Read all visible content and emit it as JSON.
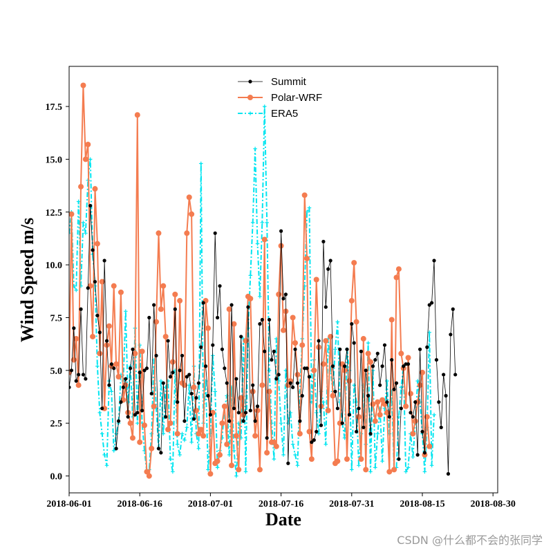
{
  "chart_data": {
    "type": "line",
    "xlabel": "Date",
    "ylabel": "Wind Speed m/s",
    "xlim": [
      "2018-06-01",
      "2018-08-31"
    ],
    "ylim": [
      -0.8,
      19.4
    ],
    "x_ticks": [
      {
        "date": "2018-06-01",
        "label": "2018-06-01"
      },
      {
        "date": "2018-06-16",
        "label": "2018-06-16"
      },
      {
        "date": "2018-07-01",
        "label": "2018-07-01"
      },
      {
        "date": "2018-07-16",
        "label": "2018-07-16"
      },
      {
        "date": "2018-07-31",
        "label": "2018-07-31"
      },
      {
        "date": "2018-08-15",
        "label": "2018-08-15"
      },
      {
        "date": "2018-08-30",
        "label": "2018-08-30"
      }
    ],
    "y_ticks": [
      {
        "value": 0,
        "label": "0.0"
      },
      {
        "value": 2.5,
        "label": "2.5"
      },
      {
        "value": 5,
        "label": "5.0"
      },
      {
        "value": 7.5,
        "label": "7.5"
      },
      {
        "value": 10,
        "label": "10.0"
      },
      {
        "value": 12.5,
        "label": "12.5"
      },
      {
        "value": 15,
        "label": "15.0"
      },
      {
        "value": 17.5,
        "label": "17.5"
      }
    ],
    "grid": false,
    "legend_position": "top-center",
    "sampling": "two values per day (12-hourly), starting 2018-06-01 00:00",
    "series": [
      {
        "name": "Summit",
        "color": "#000000",
        "style": "solid-thin-dot",
        "values": [
          4.2,
          5.0,
          7.0,
          4.5,
          4.8,
          7.9,
          4.8,
          4.6,
          8.9,
          12.8,
          10.7,
          9.2,
          7.6,
          6.8,
          3.2,
          10.2,
          6.4,
          4.3,
          5.3,
          5.1,
          1.3,
          2.6,
          3.5,
          4.2,
          4.6,
          2.8,
          5.1,
          6.0,
          2.9,
          3.0,
          4.9,
          3.1,
          5.0,
          5.1,
          7.5,
          3.9,
          8.1,
          5.7,
          1.3,
          1.1,
          4.4,
          2.8,
          6.4,
          4.7,
          4.9,
          7.9,
          3.5,
          5.0,
          5.7,
          2.6,
          4.7,
          4.8,
          3.9,
          2.7,
          3.7,
          4.4,
          6.1,
          8.2,
          5.2,
          3.8,
          2.9,
          6.2,
          11.5,
          7.5,
          9.0,
          6.0,
          5.1,
          4.4,
          2.6,
          8.1,
          3.2,
          4.6,
          3.0,
          6.6,
          2.6,
          3.0,
          8.0,
          3.1,
          4.3,
          2.6,
          3.3,
          7.2,
          7.4,
          5.9,
          1.8,
          7.4,
          5.5,
          5.9,
          4.6,
          4.8,
          11.6,
          8.4,
          8.6,
          0.6,
          4.4,
          4.2,
          6.0,
          4.4,
          2.6,
          3.8,
          5.1,
          5.1,
          4.7,
          1.6,
          1.7,
          2.1,
          6.4,
          2.4,
          11.1,
          8.0,
          9.8,
          10.2,
          5.2,
          4.0,
          3.2,
          6.0,
          2.5,
          5.2,
          6.0,
          2.9,
          7.2,
          6.3,
          2.1,
          3.2,
          5.9,
          2.3,
          5.0,
          3.8,
          2.0,
          5.2,
          5.5,
          5.8,
          4.3,
          5.2,
          6.2,
          3.5,
          2.8,
          5.5,
          4.1,
          4.4,
          0.8,
          3.2,
          5.2,
          5.3,
          5.3,
          3.0,
          2.8,
          3.5,
          1.0,
          6.0,
          2.1,
          1.1,
          6.1,
          8.1,
          8.2,
          10.2,
          5.5,
          3.5,
          2.3,
          4.8,
          3.8,
          0.1,
          6.7,
          7.9,
          4.8
        ]
      },
      {
        "name": "Polar-WRF",
        "color": "#f47c50",
        "style": "solid-thick-circle",
        "values": [
          4.9,
          12.4,
          5.5,
          6.5,
          4.3,
          13.7,
          18.5,
          15.0,
          15.7,
          9.0,
          6.6,
          13.6,
          11.0,
          5.8,
          9.2,
          3.2,
          6.2,
          7.1,
          5.2,
          9.0,
          5.3,
          4.7,
          8.7,
          3.6,
          4.3,
          3.0,
          2.5,
          1.8,
          5.8,
          17.1,
          1.6,
          5.9,
          2.4,
          0.2,
          0.0,
          1.3,
          3.3,
          7.3,
          11.5,
          7.9,
          9.0,
          6.6,
          2.2,
          2.5,
          5.4,
          8.6,
          2.0,
          8.3,
          4.4,
          4.3,
          11.5,
          13.2,
          12.4,
          4.2,
          3.1,
          2.0,
          2.2,
          1.9,
          8.3,
          7.0,
          0.1,
          3.0,
          0.6,
          0.7,
          1.0,
          2.5,
          3.3,
          1.5,
          7.9,
          0.5,
          7.2,
          1.9,
          0.3,
          3.7,
          2.9,
          6.4,
          8.5,
          8.4,
          4.0,
          1.9,
          3.1,
          0.3,
          4.3,
          11.2,
          1.1,
          4.0,
          1.6,
          1.6,
          1.4,
          8.6,
          10.9,
          6.9,
          7.8,
          4.3,
          4.5,
          7.5,
          6.3,
          4.8,
          2.0,
          6.2,
          13.3,
          10.3,
          2.1,
          0.8,
          5.0,
          9.3,
          6.1,
          3.3,
          5.3,
          6.4,
          3.1,
          6.6,
          3.8,
          0.6,
          0.7,
          2.5,
          5.3,
          5.0,
          0.8,
          4.5,
          8.3,
          10.1,
          7.3,
          2.8,
          0.8,
          6.5,
          0.3,
          5.8,
          5.4,
          3.4,
          2.6,
          3.5,
          2.9,
          3.6,
          3.4,
          3.0,
          0.2,
          7.4,
          0.3,
          9.4,
          9.8,
          5.8,
          5.1,
          3.3,
          5.6,
          3.9,
          2.0,
          2.6,
          3.5,
          4.3,
          4.9,
          1.0,
          2.8,
          1.4
        ]
      },
      {
        "name": "ERA5",
        "color": "#00e5f0",
        "style": "dashdot-plus",
        "values": [
          11.5,
          12.5,
          9.0,
          8.8,
          13.0,
          9.0,
          12.0,
          11.5,
          14.0,
          15.0,
          10.5,
          9.0,
          5.2,
          3.0,
          2.0,
          1.0,
          0.5,
          4.5,
          4.0,
          1.2,
          2.0,
          2.5,
          4.8,
          4.5,
          7.8,
          3.5,
          5.2,
          2.8,
          7.0,
          2.5,
          6.2,
          2.5,
          1.2,
          0.2,
          0.3,
          2.0,
          5.5,
          3.2,
          1.3,
          4.5,
          2.0,
          4.2,
          4.5,
          0.8,
          0.2,
          5.0,
          1.5,
          1.0,
          2.0,
          1.7,
          2.3,
          4.3,
          1.6,
          5.2,
          2.0,
          1.3,
          14.8,
          2.5,
          4.5,
          0.3,
          2.0,
          5.7,
          4.0,
          0.4,
          1.2,
          1.8,
          3.2,
          3.8,
          1.0,
          4.2,
          1.2,
          0.0,
          2.5,
          1.8,
          6.5,
          0.2,
          7.0,
          9.5,
          12.0,
          15.5,
          11.0,
          8.5,
          12.0,
          17.5,
          12.0,
          5.0,
          2.5,
          0.8,
          6.5,
          4.5,
          2.5,
          1.0,
          5.0,
          2.5,
          3.0,
          1.5,
          1.0,
          0.5,
          4.0,
          6.5,
          9.0,
          12.5,
          12.7,
          3.5,
          5.5,
          3.0,
          2.0,
          4.0,
          3.5,
          1.5,
          6.5,
          5.0,
          4.0,
          6.0,
          7.3,
          3.5,
          2.5,
          1.8,
          6.0,
          5.0,
          0.3,
          4.3,
          3.5,
          0.5,
          2.0,
          4.3,
          1.5,
          6.3,
          0.2,
          5.0,
          0.4,
          2.0,
          3.2,
          0.7,
          3.2,
          4.5,
          2.0,
          4.0,
          0.3,
          0.4,
          2.8,
          4.2,
          5.2,
          0.2,
          0.4,
          2.0,
          0.9,
          2.5,
          4.5,
          3.5,
          2.0,
          0.2,
          2.3,
          6.8,
          0.5,
          2.9
        ]
      }
    ]
  },
  "watermark": "CSDN @什么都不会的张同学"
}
